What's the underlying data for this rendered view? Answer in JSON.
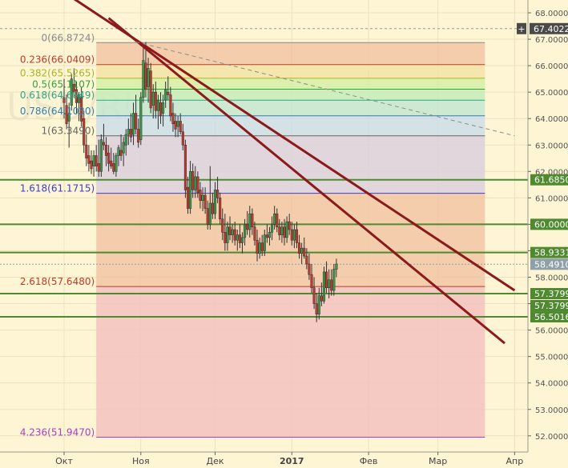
{
  "chart_data": {
    "type": "candlestick",
    "title": "",
    "watermark": "USD/RUB",
    "y_axis": {
      "range": [
        51.7,
        68.2
      ],
      "ticks": [
        52,
        53,
        54,
        55,
        56,
        57,
        58,
        59,
        60,
        61,
        62,
        63,
        64,
        65,
        66,
        67,
        68
      ],
      "tick_labels": [
        "52.0000",
        "53.0000",
        "54.0000",
        "55.0000",
        "56.0000",
        "57.0000",
        "58.0000",
        "59.0000",
        "60.0000",
        "61.0000",
        "62.0000",
        "63.0000",
        "64.0000",
        "65.0000",
        "66.0000",
        "67.0000",
        "68.0000"
      ],
      "position": "right"
    },
    "x_axis": {
      "labels": [
        "Окт",
        "Ноя",
        "Дек",
        "2017",
        "Фев",
        "Мар",
        "Апр"
      ],
      "label_days": [
        0,
        31,
        61,
        92,
        123,
        151,
        182
      ]
    },
    "grid": true,
    "fibonacci": {
      "colors": {
        "band_0_0236": "#f2c6a6",
        "band_0236_0382": "#f3e3a6",
        "band_0382_05": "#d6eda6",
        "band_05_0618": "#c6ecb9",
        "band_0618_0786": "#c6e6d0",
        "band_0786_1": "#ccdde8",
        "band_1_1618": "#dcd0dc",
        "band_1618_2618": "#f2c6a6",
        "band_2618_4236": "#f2c2c0"
      },
      "levels": [
        {
          "ratio": "0",
          "value": 66.8724,
          "label": "0(66.8724)",
          "color": "#888888"
        },
        {
          "ratio": "0.236",
          "value": 66.0409,
          "label": "0.236(66.0409)",
          "color": "#c0392b"
        },
        {
          "ratio": "0.382",
          "value": 65.5265,
          "label": "0.382(65.5265)",
          "color": "#a8b820"
        },
        {
          "ratio": "0.5",
          "value": 65.1107,
          "label": "0.5(65.1107)",
          "color": "#2fa53a"
        },
        {
          "ratio": "0.618",
          "value": 64.6949,
          "label": "0.618(64.6949)",
          "color": "#2aa78a"
        },
        {
          "ratio": "0.786",
          "value": 64.103,
          "label": "0.786(64.1030)",
          "color": "#2f7fb4"
        },
        {
          "ratio": "1",
          "value": 63.349,
          "label": "1(63.3490)",
          "color": "#666666"
        },
        {
          "ratio": "1.618",
          "value": 61.1715,
          "label": "1.618(61.1715)",
          "color": "#3c3ccf"
        },
        {
          "ratio": "2.618",
          "value": 57.648,
          "label": "2.618(57.6480)",
          "color": "#c0392b"
        },
        {
          "ratio": "4.236",
          "value": 51.947,
          "label": "4.236(51.9470)",
          "color": "#b03cc0"
        }
      ],
      "start_day": 13,
      "end_day": 170
    },
    "horizontal_lines": [
      {
        "value": 61.685,
        "label": "61.6850",
        "color": "#4f8a30"
      },
      {
        "value": 60.0,
        "label": "60.0000",
        "color": "#4f8a30"
      },
      {
        "value": 58.9331,
        "label": "58.9331",
        "color": "#4f8a30"
      },
      {
        "value": 57.3799,
        "label": "57.3799",
        "color": "#4f8a30"
      },
      {
        "value": 56.5016,
        "label": "56.5016",
        "color": "#4f8a30"
      }
    ],
    "price_labels": [
      {
        "value": 67.4022,
        "label": "67.4022",
        "bg": "#4a4a4a",
        "plus": true
      },
      {
        "value": 61.685,
        "label": "61.6850",
        "bg": "#4f8a30"
      },
      {
        "value": 60.0,
        "label": "60.0000",
        "bg": "#4f8a30"
      },
      {
        "value": 58.9331,
        "label": "58.9331",
        "bg": "#4f8a30"
      },
      {
        "value": 58.491,
        "label": "58.4910",
        "bg": "#8fa0a8"
      },
      {
        "value": 57.3799,
        "label": "57.3799",
        "bg": "#4f8a30"
      },
      {
        "value": 57.3799,
        "label": "57.3799",
        "bg": "#4f8a30",
        "below": true
      },
      {
        "value": 56.5016,
        "label": "56.5016",
        "bg": "#4f8a30"
      }
    ],
    "current_price": 58.491,
    "top_dashed_line": 67.4022,
    "trend_lines": [
      {
        "from": [
          -2,
          68.9
        ],
        "to": [
          182,
          57.5
        ],
        "color": "#8b1a1a"
      },
      {
        "from": [
          18,
          67.8
        ],
        "to": [
          178,
          55.5
        ],
        "color": "#8b1a1a"
      },
      {
        "from": [
          29,
          66.9
        ],
        "to": [
          182,
          63.35
        ],
        "color": "#8c8c8c",
        "dashed": true
      }
    ],
    "candles": [
      {
        "d": 0,
        "o": 64.8,
        "h": 65.5,
        "l": 64.0,
        "c": 64.6
      },
      {
        "d": 1,
        "o": 64.5,
        "h": 64.9,
        "l": 63.6,
        "c": 63.8
      },
      {
        "d": 2,
        "o": 63.9,
        "h": 64.6,
        "l": 62.9,
        "c": 64.2
      },
      {
        "d": 3,
        "o": 64.5,
        "h": 65.7,
        "l": 64.3,
        "c": 65.5
      },
      {
        "d": 4,
        "o": 65.3,
        "h": 65.9,
        "l": 64.8,
        "c": 65.0
      },
      {
        "d": 5,
        "o": 65.1,
        "h": 65.4,
        "l": 64.2,
        "c": 64.6
      },
      {
        "d": 6,
        "o": 64.6,
        "h": 65.0,
        "l": 63.9,
        "c": 64.9
      },
      {
        "d": 7,
        "o": 64.8,
        "h": 65.2,
        "l": 63.7,
        "c": 63.9
      },
      {
        "d": 8,
        "o": 64.0,
        "h": 64.3,
        "l": 62.7,
        "c": 63.0
      },
      {
        "d": 9,
        "o": 63.0,
        "h": 63.4,
        "l": 62.2,
        "c": 62.5
      },
      {
        "d": 10,
        "o": 62.6,
        "h": 63.0,
        "l": 62.0,
        "c": 62.3
      },
      {
        "d": 11,
        "o": 62.4,
        "h": 62.8,
        "l": 61.9,
        "c": 62.1
      },
      {
        "d": 12,
        "o": 62.2,
        "h": 62.8,
        "l": 61.8,
        "c": 62.6
      },
      {
        "d": 13,
        "o": 62.6,
        "h": 63.0,
        "l": 62.0,
        "c": 62.2
      },
      {
        "d": 14,
        "o": 62.3,
        "h": 63.2,
        "l": 61.8,
        "c": 62.0
      },
      {
        "d": 15,
        "o": 62.0,
        "h": 63.4,
        "l": 61.8,
        "c": 63.2
      },
      {
        "d": 16,
        "o": 63.1,
        "h": 63.8,
        "l": 62.8,
        "c": 63.0
      },
      {
        "d": 17,
        "o": 63.0,
        "h": 63.3,
        "l": 62.2,
        "c": 62.6
      },
      {
        "d": 18,
        "o": 62.7,
        "h": 63.0,
        "l": 62.0,
        "c": 62.3
      },
      {
        "d": 19,
        "o": 62.4,
        "h": 62.9,
        "l": 62.1,
        "c": 62.2
      },
      {
        "d": 20,
        "o": 62.3,
        "h": 62.7,
        "l": 61.9,
        "c": 62.0
      },
      {
        "d": 21,
        "o": 62.0,
        "h": 62.7,
        "l": 61.8,
        "c": 62.6
      },
      {
        "d": 22,
        "o": 62.6,
        "h": 63.0,
        "l": 62.2,
        "c": 62.9
      },
      {
        "d": 23,
        "o": 62.8,
        "h": 63.4,
        "l": 62.4,
        "c": 62.6
      },
      {
        "d": 24,
        "o": 62.7,
        "h": 63.3,
        "l": 62.2,
        "c": 63.1
      },
      {
        "d": 25,
        "o": 63.0,
        "h": 63.6,
        "l": 62.6,
        "c": 63.4
      },
      {
        "d": 26,
        "o": 63.4,
        "h": 64.0,
        "l": 63.0,
        "c": 63.6
      },
      {
        "d": 27,
        "o": 63.6,
        "h": 64.2,
        "l": 63.1,
        "c": 63.3
      },
      {
        "d": 28,
        "o": 63.4,
        "h": 64.6,
        "l": 63.0,
        "c": 64.2
      },
      {
        "d": 29,
        "o": 64.2,
        "h": 64.9,
        "l": 63.4,
        "c": 63.6
      },
      {
        "d": 30,
        "o": 63.6,
        "h": 64.0,
        "l": 62.9,
        "c": 63.1
      },
      {
        "d": 31,
        "o": 63.2,
        "h": 65.0,
        "l": 63.0,
        "c": 64.8
      },
      {
        "d": 32,
        "o": 64.8,
        "h": 66.8,
        "l": 64.6,
        "c": 66.2
      },
      {
        "d": 33,
        "o": 66.1,
        "h": 66.9,
        "l": 64.8,
        "c": 65.1
      },
      {
        "d": 34,
        "o": 65.2,
        "h": 66.3,
        "l": 64.6,
        "c": 65.9
      },
      {
        "d": 35,
        "o": 65.8,
        "h": 66.1,
        "l": 64.2,
        "c": 64.4
      },
      {
        "d": 36,
        "o": 64.5,
        "h": 65.3,
        "l": 64.0,
        "c": 65.0
      },
      {
        "d": 37,
        "o": 65.0,
        "h": 65.4,
        "l": 64.0,
        "c": 64.3
      },
      {
        "d": 38,
        "o": 64.3,
        "h": 64.9,
        "l": 63.6,
        "c": 64.7
      },
      {
        "d": 39,
        "o": 64.6,
        "h": 65.0,
        "l": 63.8,
        "c": 64.1
      },
      {
        "d": 40,
        "o": 64.2,
        "h": 64.9,
        "l": 63.7,
        "c": 64.6
      },
      {
        "d": 41,
        "o": 64.7,
        "h": 65.4,
        "l": 64.4,
        "c": 65.1
      },
      {
        "d": 42,
        "o": 65.0,
        "h": 65.6,
        "l": 64.7,
        "c": 64.9
      },
      {
        "d": 43,
        "o": 64.9,
        "h": 65.2,
        "l": 63.9,
        "c": 64.1
      },
      {
        "d": 44,
        "o": 64.2,
        "h": 64.6,
        "l": 63.5,
        "c": 63.8
      },
      {
        "d": 45,
        "o": 63.9,
        "h": 64.2,
        "l": 63.3,
        "c": 63.6
      },
      {
        "d": 46,
        "o": 63.7,
        "h": 64.1,
        "l": 63.3,
        "c": 63.9
      },
      {
        "d": 47,
        "o": 63.9,
        "h": 64.2,
        "l": 63.4,
        "c": 63.5
      },
      {
        "d": 48,
        "o": 63.5,
        "h": 63.8,
        "l": 62.8,
        "c": 63.0
      },
      {
        "d": 49,
        "o": 63.0,
        "h": 63.2,
        "l": 61.0,
        "c": 61.3
      },
      {
        "d": 50,
        "o": 61.4,
        "h": 61.8,
        "l": 60.4,
        "c": 60.6
      },
      {
        "d": 51,
        "o": 60.6,
        "h": 62.4,
        "l": 60.4,
        "c": 62.0
      },
      {
        "d": 52,
        "o": 62.0,
        "h": 62.3,
        "l": 61.0,
        "c": 61.3
      },
      {
        "d": 53,
        "o": 61.3,
        "h": 62.2,
        "l": 61.0,
        "c": 61.8
      },
      {
        "d": 54,
        "o": 61.8,
        "h": 62.0,
        "l": 61.0,
        "c": 61.2
      },
      {
        "d": 55,
        "o": 61.3,
        "h": 61.6,
        "l": 60.6,
        "c": 60.9
      },
      {
        "d": 56,
        "o": 60.9,
        "h": 61.4,
        "l": 60.5,
        "c": 61.1
      },
      {
        "d": 57,
        "o": 61.1,
        "h": 61.4,
        "l": 60.4,
        "c": 60.6
      },
      {
        "d": 58,
        "o": 60.6,
        "h": 60.9,
        "l": 59.8,
        "c": 60.0
      },
      {
        "d": 59,
        "o": 60.0,
        "h": 62.2,
        "l": 59.8,
        "c": 60.8
      },
      {
        "d": 60,
        "o": 60.8,
        "h": 61.2,
        "l": 60.2,
        "c": 60.4
      },
      {
        "d": 61,
        "o": 60.4,
        "h": 61.6,
        "l": 60.2,
        "c": 61.3
      },
      {
        "d": 62,
        "o": 61.3,
        "h": 61.8,
        "l": 60.8,
        "c": 61.0
      },
      {
        "d": 63,
        "o": 61.0,
        "h": 61.2,
        "l": 60.0,
        "c": 60.2
      },
      {
        "d": 64,
        "o": 60.2,
        "h": 60.6,
        "l": 59.4,
        "c": 59.7
      },
      {
        "d": 65,
        "o": 59.7,
        "h": 60.4,
        "l": 59.0,
        "c": 59.3
      },
      {
        "d": 66,
        "o": 59.3,
        "h": 60.1,
        "l": 59.0,
        "c": 59.9
      },
      {
        "d": 67,
        "o": 59.9,
        "h": 60.3,
        "l": 59.4,
        "c": 59.6
      },
      {
        "d": 68,
        "o": 59.6,
        "h": 60.0,
        "l": 59.3,
        "c": 59.8
      },
      {
        "d": 69,
        "o": 59.8,
        "h": 60.1,
        "l": 59.2,
        "c": 59.4
      },
      {
        "d": 70,
        "o": 59.4,
        "h": 59.8,
        "l": 59.0,
        "c": 59.6
      },
      {
        "d": 71,
        "o": 59.6,
        "h": 60.0,
        "l": 59.1,
        "c": 59.3
      },
      {
        "d": 72,
        "o": 59.3,
        "h": 59.7,
        "l": 58.9,
        "c": 59.5
      },
      {
        "d": 73,
        "o": 59.5,
        "h": 60.2,
        "l": 59.2,
        "c": 60.0
      },
      {
        "d": 74,
        "o": 60.0,
        "h": 60.5,
        "l": 59.6,
        "c": 59.8
      },
      {
        "d": 75,
        "o": 59.8,
        "h": 60.7,
        "l": 59.5,
        "c": 60.4
      },
      {
        "d": 76,
        "o": 60.4,
        "h": 60.6,
        "l": 59.6,
        "c": 59.9
      },
      {
        "d": 77,
        "o": 59.9,
        "h": 60.1,
        "l": 59.2,
        "c": 59.4
      },
      {
        "d": 78,
        "o": 59.4,
        "h": 59.8,
        "l": 58.6,
        "c": 58.9
      },
      {
        "d": 79,
        "o": 58.9,
        "h": 59.5,
        "l": 58.7,
        "c": 59.3
      },
      {
        "d": 80,
        "o": 59.3,
        "h": 59.6,
        "l": 58.8,
        "c": 59.0
      },
      {
        "d": 81,
        "o": 59.0,
        "h": 59.8,
        "l": 58.8,
        "c": 59.6
      },
      {
        "d": 82,
        "o": 59.6,
        "h": 60.0,
        "l": 59.3,
        "c": 59.5
      },
      {
        "d": 83,
        "o": 59.5,
        "h": 59.9,
        "l": 59.2,
        "c": 59.7
      },
      {
        "d": 84,
        "o": 59.7,
        "h": 60.3,
        "l": 59.4,
        "c": 60.0
      },
      {
        "d": 85,
        "o": 60.0,
        "h": 60.7,
        "l": 59.8,
        "c": 60.4
      },
      {
        "d": 86,
        "o": 60.4,
        "h": 60.6,
        "l": 59.7,
        "c": 59.9
      },
      {
        "d": 87,
        "o": 59.9,
        "h": 60.2,
        "l": 59.4,
        "c": 59.6
      },
      {
        "d": 88,
        "o": 59.6,
        "h": 60.1,
        "l": 59.3,
        "c": 59.9
      },
      {
        "d": 89,
        "o": 59.9,
        "h": 60.2,
        "l": 59.2,
        "c": 59.5
      },
      {
        "d": 90,
        "o": 59.5,
        "h": 60.3,
        "l": 59.3,
        "c": 60.1
      },
      {
        "d": 91,
        "o": 60.1,
        "h": 60.4,
        "l": 59.6,
        "c": 59.8
      },
      {
        "d": 92,
        "o": 59.8,
        "h": 60.1,
        "l": 59.2,
        "c": 59.4
      },
      {
        "d": 93,
        "o": 59.4,
        "h": 60.0,
        "l": 59.1,
        "c": 59.8
      },
      {
        "d": 94,
        "o": 59.8,
        "h": 60.1,
        "l": 59.1,
        "c": 59.3
      },
      {
        "d": 95,
        "o": 59.3,
        "h": 59.6,
        "l": 58.7,
        "c": 58.9
      },
      {
        "d": 96,
        "o": 58.9,
        "h": 59.3,
        "l": 58.5,
        "c": 59.1
      },
      {
        "d": 97,
        "o": 59.1,
        "h": 59.5,
        "l": 58.7,
        "c": 58.8
      },
      {
        "d": 98,
        "o": 58.8,
        "h": 59.1,
        "l": 58.3,
        "c": 58.5
      },
      {
        "d": 99,
        "o": 58.5,
        "h": 58.9,
        "l": 57.9,
        "c": 58.1
      },
      {
        "d": 100,
        "o": 58.1,
        "h": 58.5,
        "l": 57.4,
        "c": 57.6
      },
      {
        "d": 101,
        "o": 57.6,
        "h": 58.0,
        "l": 56.8,
        "c": 57.0
      },
      {
        "d": 102,
        "o": 57.0,
        "h": 57.4,
        "l": 56.3,
        "c": 56.6
      },
      {
        "d": 103,
        "o": 56.6,
        "h": 57.6,
        "l": 56.4,
        "c": 57.3
      },
      {
        "d": 104,
        "o": 57.3,
        "h": 57.8,
        "l": 56.9,
        "c": 57.1
      },
      {
        "d": 105,
        "o": 57.1,
        "h": 58.4,
        "l": 57.0,
        "c": 58.2
      },
      {
        "d": 106,
        "o": 58.2,
        "h": 58.6,
        "l": 57.4,
        "c": 57.6
      },
      {
        "d": 107,
        "o": 57.6,
        "h": 58.3,
        "l": 57.2,
        "c": 57.9
      },
      {
        "d": 108,
        "o": 57.9,
        "h": 58.3,
        "l": 57.3,
        "c": 57.5
      },
      {
        "d": 109,
        "o": 57.5,
        "h": 58.5,
        "l": 57.3,
        "c": 58.3
      },
      {
        "d": 110,
        "o": 58.3,
        "h": 58.7,
        "l": 58.0,
        "c": 58.5
      }
    ]
  }
}
